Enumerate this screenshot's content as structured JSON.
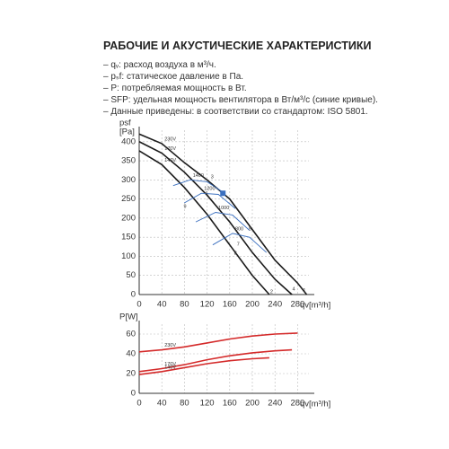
{
  "title": "РАБОЧИЕ И АКУСТИЧЕСКИЕ ХАРАКТЕРИСТИКИ",
  "notes": [
    "– qᵥ: расход воздуха в м³/ч.",
    "– pₛf: статическое давление в Па.",
    "– P: потребляемая мощность в Вт.",
    "– SFP: удельная мощность вентилятора в Вт/м³/с (синие кривые).",
    "– Данные приведены: в соответствии со стандартом: ISO 5801."
  ],
  "chart_data": [
    {
      "type": "line",
      "ylabel": "psf",
      "yunit": "[Pa]",
      "xlabel": "qv[m³/h]",
      "grid": true,
      "xlim": [
        0,
        300
      ],
      "xticks": [
        0,
        40,
        80,
        120,
        160,
        200,
        240,
        280
      ],
      "ylim": [
        0,
        430
      ],
      "yticks": [
        0,
        50,
        100,
        150,
        200,
        250,
        300,
        350,
        400
      ],
      "series": [
        {
          "name": "230V",
          "color": "#1a1a1a",
          "x": [
            0,
            40,
            80,
            120,
            160,
            200,
            240,
            280,
            296
          ],
          "values": [
            420,
            395,
            345,
            300,
            250,
            170,
            90,
            30,
            0
          ]
        },
        {
          "name": "170V",
          "color": "#1a1a1a",
          "x": [
            0,
            40,
            80,
            120,
            160,
            200,
            240,
            270
          ],
          "values": [
            400,
            370,
            320,
            260,
            190,
            110,
            40,
            0
          ]
        },
        {
          "name": "140V",
          "color": "#1a1a1a",
          "x": [
            0,
            40,
            80,
            120,
            160,
            200,
            230
          ],
          "values": [
            376,
            340,
            280,
            210,
            130,
            50,
            0
          ]
        },
        {
          "name": "1400",
          "color": "#3a6fbf",
          "x": [
            60,
            90,
            120,
            150
          ],
          "values": [
            285,
            300,
            295,
            266
          ]
        },
        {
          "name": "1200",
          "color": "#3a6fbf",
          "x": [
            80,
            110,
            140,
            170
          ],
          "values": [
            240,
            265,
            262,
            225
          ]
        },
        {
          "name": "1000",
          "color": "#3a6fbf",
          "x": [
            100,
            135,
            165,
            195
          ],
          "values": [
            190,
            215,
            208,
            168
          ]
        },
        {
          "name": "800",
          "color": "#3a6fbf",
          "x": [
            130,
            165,
            195,
            225
          ],
          "values": [
            130,
            160,
            150,
            110
          ]
        }
      ],
      "highlight": {
        "x": 148,
        "y": 265,
        "color": "#3a6fbf"
      },
      "annotations": [
        {
          "text": "1",
          "x": 292,
          "y": 10
        },
        {
          "text": "2",
          "x": 234,
          "y": 7
        },
        {
          "text": "3",
          "x": 129,
          "y": 308
        },
        {
          "text": "4",
          "x": 273,
          "y": 14
        },
        {
          "text": "5",
          "x": 196,
          "y": 172
        },
        {
          "text": "6",
          "x": 119,
          "y": 263
        },
        {
          "text": "7",
          "x": 175,
          "y": 132
        },
        {
          "text": "8",
          "x": 170,
          "y": 108
        },
        {
          "text": "9",
          "x": 81,
          "y": 230
        }
      ]
    },
    {
      "type": "line",
      "ylabel": "P[W]",
      "xlabel": "qv[m³/h]",
      "grid": true,
      "xlim": [
        0,
        300
      ],
      "xticks": [
        0,
        40,
        80,
        120,
        160,
        200,
        240,
        280
      ],
      "ylim": [
        0,
        70
      ],
      "yticks": [
        0,
        20,
        40,
        60
      ],
      "series": [
        {
          "name": "230V",
          "color": "#d42a2a",
          "x": [
            0,
            40,
            80,
            120,
            160,
            200,
            240,
            280
          ],
          "values": [
            42,
            44,
            47,
            51,
            55,
            58,
            60,
            61
          ]
        },
        {
          "name": "170V",
          "color": "#d42a2a",
          "x": [
            0,
            40,
            80,
            120,
            160,
            200,
            240,
            270
          ],
          "values": [
            22,
            25,
            29,
            34,
            38,
            41,
            43,
            44
          ]
        },
        {
          "name": "140V",
          "color": "#d42a2a",
          "x": [
            0,
            40,
            80,
            120,
            160,
            200,
            230
          ],
          "values": [
            19,
            22,
            26,
            30,
            33,
            35,
            36
          ]
        }
      ]
    }
  ]
}
